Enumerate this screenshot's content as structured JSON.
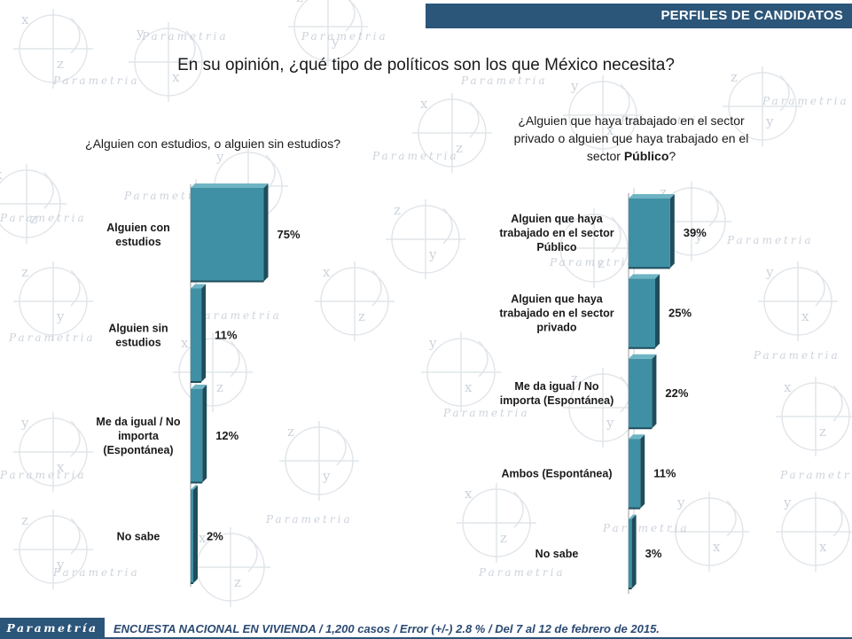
{
  "header": {
    "title": "PERFILES DE CANDIDATOS"
  },
  "main_question": "En su opinión, ¿qué tipo de políticos son los que México necesita?",
  "left_question": "¿Alguien con estudios, o alguien sin estudios?",
  "right_question": {
    "line1": "¿Alguien que haya trabajado en el sector",
    "line2": "privado o alguien que haya trabajado en el",
    "line3_pre": "sector ",
    "line3_bold": "Público",
    "line3_post": "?"
  },
  "footer": {
    "logo": "Parametría",
    "text": "ENCUESTA NACIONAL EN VIVIENDA / 1,200 casos / Error (+/-) 2.8 % / Del 7 al 12 de febrero de 2015."
  },
  "watermark": {
    "text": "Parametria",
    "glyphs": [
      "x",
      "y",
      "z"
    ]
  },
  "colors": {
    "bar": "#3f90a4",
    "bar_top": "#6fb4c4",
    "bar_edge": "#1f4d5c",
    "header": "#2b5579",
    "axis": "#9a9a9a"
  },
  "chart_data": [
    {
      "type": "bar",
      "orientation": "horizontal",
      "title": "¿Alguien con estudios, o alguien sin estudios?",
      "categories": [
        [
          "Alguien con",
          "estudios"
        ],
        [
          "Alguien sin",
          "estudios"
        ],
        [
          "Me da igual / No",
          "importa",
          "(Espontánea)"
        ],
        [
          "No sabe"
        ]
      ],
      "values": [
        75,
        11,
        12,
        2
      ],
      "value_labels": [
        "75%",
        "11%",
        "12%",
        "2%"
      ],
      "unit": "%"
    },
    {
      "type": "bar",
      "orientation": "horizontal",
      "title": "¿Alguien que haya trabajado en el sector privado o alguien que haya trabajado en el sector Público?",
      "categories": [
        [
          "Alguien que haya",
          "trabajado en el sector",
          "Público"
        ],
        [
          "Alguien que haya",
          "trabajado en el sector",
          "privado"
        ],
        [
          "Me da igual / No",
          "importa (Espontánea)"
        ],
        [
          "Ambos (Espontánea)"
        ],
        [
          "No sabe"
        ]
      ],
      "values": [
        39,
        25,
        22,
        11,
        3
      ],
      "value_labels": [
        "39%",
        "25%",
        "22%",
        "11%",
        "3%"
      ],
      "unit": "%"
    }
  ]
}
